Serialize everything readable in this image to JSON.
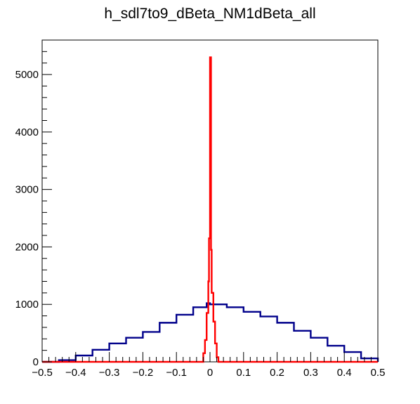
{
  "chart_data": {
    "type": "histogram",
    "title": "h_sdl7to9_dBeta_NM1dBeta_all",
    "xlabel": "",
    "ylabel": "",
    "xlim": [
      -0.5,
      0.5
    ],
    "ylim": [
      0,
      5600
    ],
    "x_ticks": [
      {
        "value": -0.5,
        "label": "−0.5"
      },
      {
        "value": -0.4,
        "label": "−0.4"
      },
      {
        "value": -0.3,
        "label": "−0.3"
      },
      {
        "value": -0.2,
        "label": "−0.2"
      },
      {
        "value": -0.1,
        "label": "−0.1"
      },
      {
        "value": 0,
        "label": "0"
      },
      {
        "value": 0.1,
        "label": "0.1"
      },
      {
        "value": 0.2,
        "label": "0.2"
      },
      {
        "value": 0.3,
        "label": "0.3"
      },
      {
        "value": 0.4,
        "label": "0.4"
      },
      {
        "value": 0.5,
        "label": "0.5"
      }
    ],
    "y_ticks": [
      {
        "value": 0,
        "label": "0"
      },
      {
        "value": 1000,
        "label": "1000"
      },
      {
        "value": 2000,
        "label": "2000"
      },
      {
        "value": 3000,
        "label": "3000"
      },
      {
        "value": 4000,
        "label": "4000"
      },
      {
        "value": 5000,
        "label": "5000"
      }
    ],
    "grid": false,
    "legend": "none",
    "series": [
      {
        "color": "#00008b",
        "bins": [
          {
            "x": -0.5,
            "y": 0
          },
          {
            "x": -0.45,
            "y": 30
          },
          {
            "x": -0.4,
            "y": 110
          },
          {
            "x": -0.35,
            "y": 210
          },
          {
            "x": -0.3,
            "y": 320
          },
          {
            "x": -0.25,
            "y": 420
          },
          {
            "x": -0.2,
            "y": 520
          },
          {
            "x": -0.15,
            "y": 680
          },
          {
            "x": -0.1,
            "y": 820
          },
          {
            "x": -0.05,
            "y": 950
          },
          {
            "x": -0.01,
            "y": 1020
          },
          {
            "x": 0,
            "y": 1000
          },
          {
            "x": 0.01,
            "y": 1000
          },
          {
            "x": 0.05,
            "y": 950
          },
          {
            "x": 0.1,
            "y": 870
          },
          {
            "x": 0.15,
            "y": 790
          },
          {
            "x": 0.2,
            "y": 680
          },
          {
            "x": 0.25,
            "y": 540
          },
          {
            "x": 0.3,
            "y": 420
          },
          {
            "x": 0.35,
            "y": 280
          },
          {
            "x": 0.4,
            "y": 170
          },
          {
            "x": 0.45,
            "y": 60
          },
          {
            "x": 0.5,
            "y": 0
          }
        ]
      },
      {
        "color": "#ff0000",
        "bins": [
          {
            "x": -0.5,
            "y": 0
          },
          {
            "x": -0.025,
            "y": 0
          },
          {
            "x": -0.02,
            "y": 150
          },
          {
            "x": -0.015,
            "y": 380
          },
          {
            "x": -0.01,
            "y": 850
          },
          {
            "x": -0.005,
            "y": 1400
          },
          {
            "x": -0.003,
            "y": 2150
          },
          {
            "x": 0,
            "y": 5300
          },
          {
            "x": 0.003,
            "y": 1950
          },
          {
            "x": 0.005,
            "y": 1200
          },
          {
            "x": 0.01,
            "y": 700
          },
          {
            "x": 0.015,
            "y": 320
          },
          {
            "x": 0.02,
            "y": 80
          },
          {
            "x": 0.025,
            "y": 0
          },
          {
            "x": 0.5,
            "y": 0
          }
        ]
      }
    ]
  }
}
